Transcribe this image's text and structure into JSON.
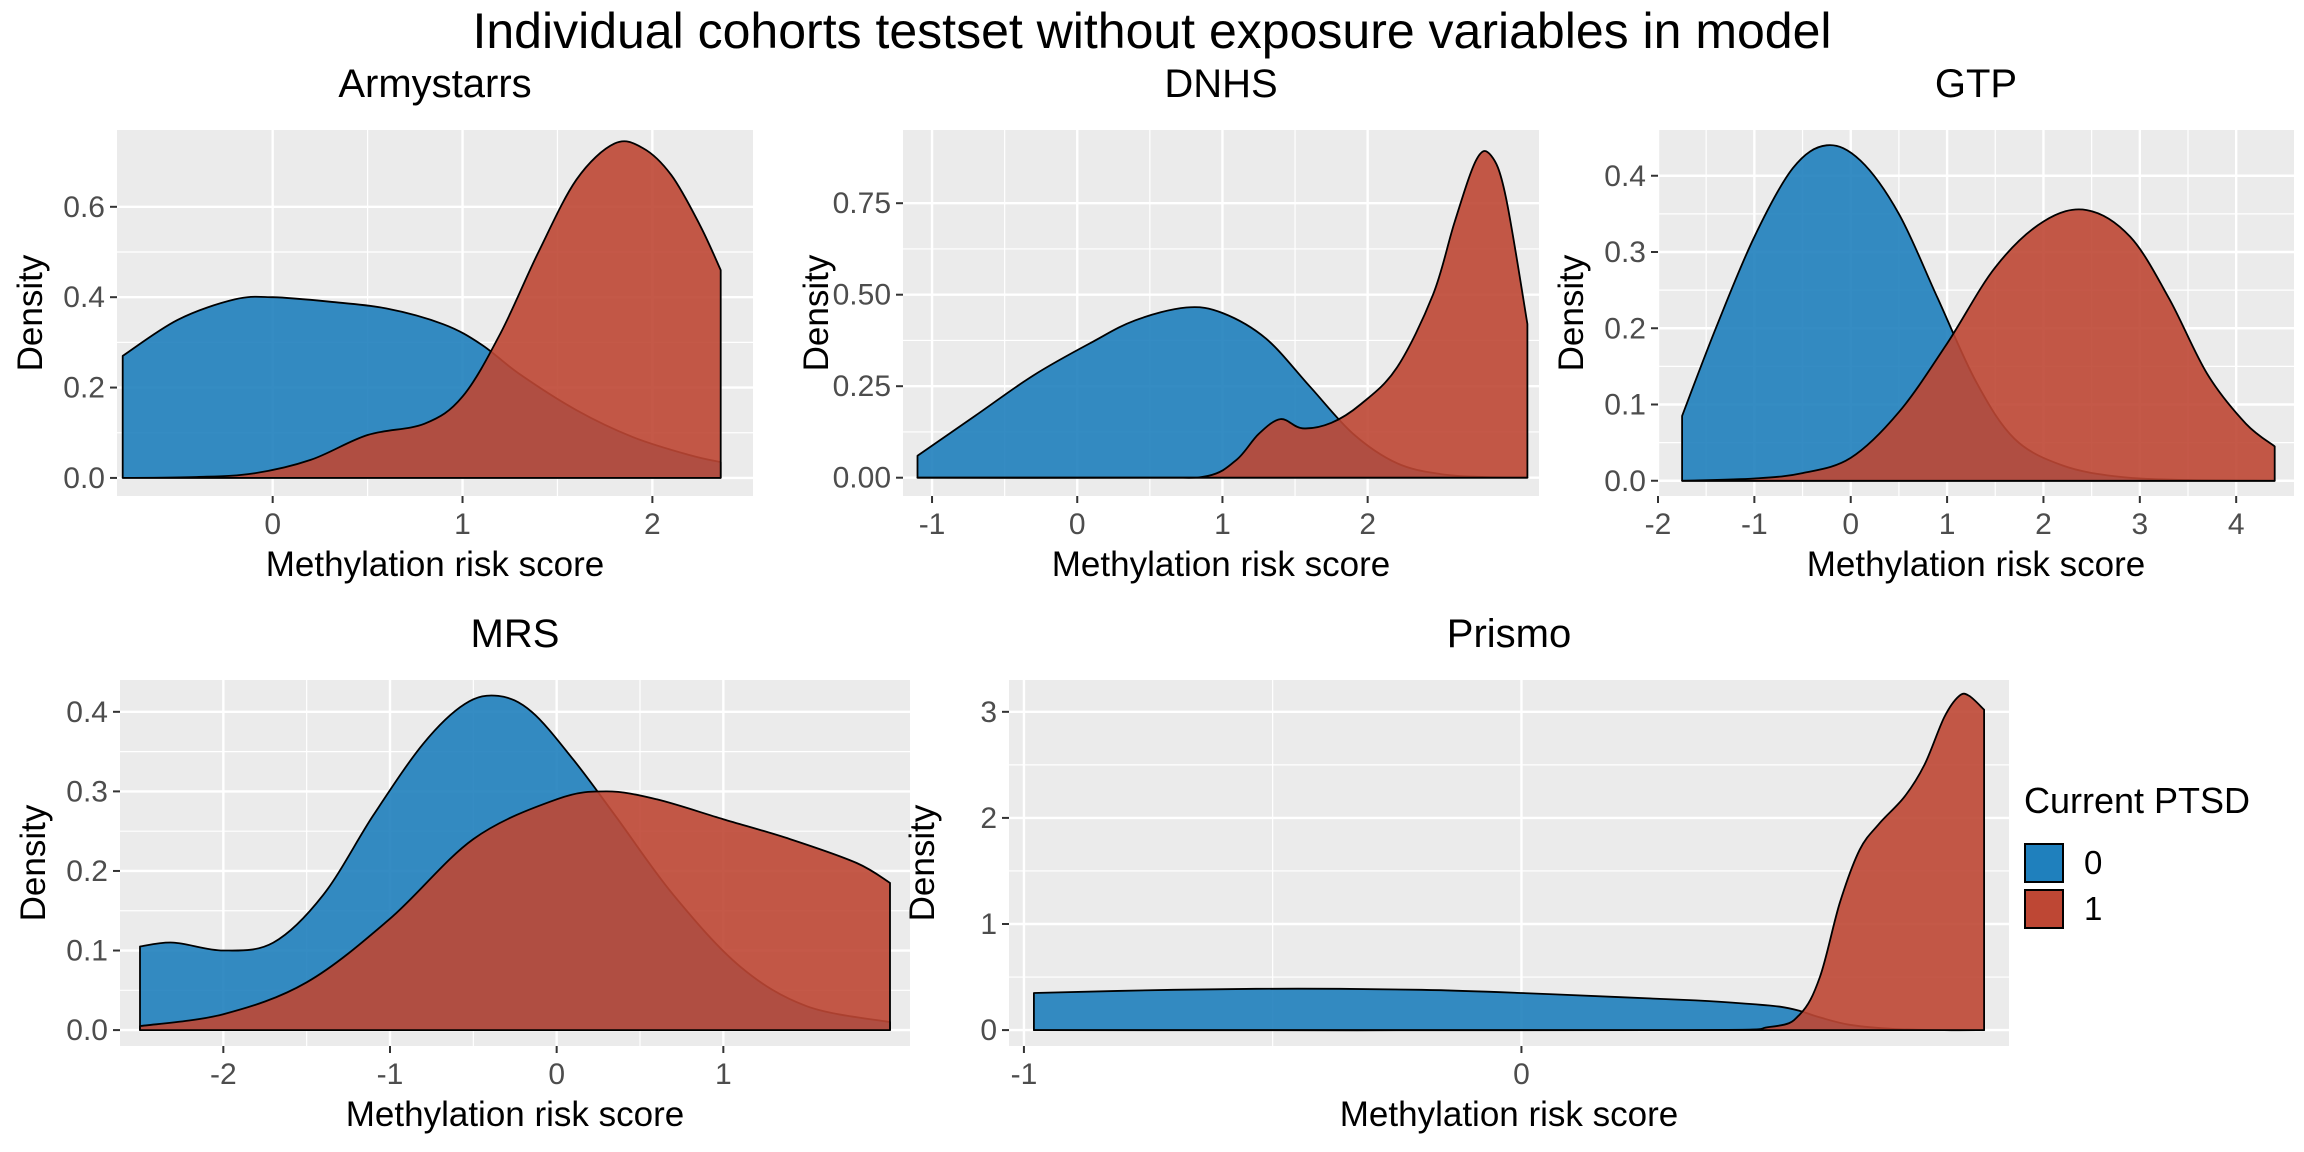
{
  "title": "Individual cohorts testset without exposure variables in model",
  "legend": {
    "title": "Current PTSD",
    "items": [
      {
        "label": "0",
        "color": "#1F80BD"
      },
      {
        "label": "1",
        "color": "#BE4734"
      }
    ]
  },
  "colors": {
    "panel_bg": "#EBEBEB",
    "grid": "#FFFFFF",
    "overlap": "#9C4A43",
    "outline": "#000000"
  },
  "chart_data": [
    {
      "type": "area",
      "title": "Armystarrs",
      "xlabel": "Methylation risk score",
      "ylabel": "Density",
      "xlim": [
        -0.82,
        2.53
      ],
      "ylim": [
        -0.04,
        0.77
      ],
      "xticks": [
        0,
        1,
        2
      ],
      "xtick_labels": [
        "0",
        "1",
        "2"
      ],
      "yticks": [
        0,
        0.2,
        0.4,
        0.6
      ],
      "ytick_labels": [
        "0.0",
        "0.2",
        "0.4",
        "0.6"
      ],
      "series": [
        {
          "name": "0",
          "x": [
            -0.79,
            -0.5,
            -0.2,
            0,
            0.3,
            0.6,
            0.9,
            1.1,
            1.3,
            1.6,
            1.9,
            2.2,
            2.36
          ],
          "y": [
            0.27,
            0.35,
            0.395,
            0.4,
            0.39,
            0.375,
            0.34,
            0.295,
            0.23,
            0.15,
            0.09,
            0.05,
            0.035
          ]
        },
        {
          "name": "1",
          "x": [
            -0.79,
            -0.4,
            -0.1,
            0.2,
            0.5,
            0.8,
            1.0,
            1.2,
            1.4,
            1.6,
            1.8,
            1.95,
            2.1,
            2.25,
            2.36
          ],
          "y": [
            0.0,
            0.002,
            0.01,
            0.04,
            0.095,
            0.12,
            0.18,
            0.32,
            0.5,
            0.66,
            0.74,
            0.73,
            0.67,
            0.56,
            0.46
          ]
        }
      ]
    },
    {
      "type": "area",
      "title": "DNHS",
      "xlabel": "Methylation risk score",
      "ylabel": "Density",
      "xlim": [
        -1.2,
        3.18
      ],
      "ylim": [
        -0.05,
        0.95
      ],
      "xticks": [
        -1,
        0,
        1,
        2
      ],
      "xtick_labels": [
        "-1",
        "0",
        "1",
        "2"
      ],
      "yticks": [
        0,
        0.25,
        0.5,
        0.75
      ],
      "ytick_labels": [
        "0.00",
        "0.25",
        "0.50",
        "0.75"
      ],
      "series": [
        {
          "name": "0",
          "x": [
            -1.1,
            -0.7,
            -0.3,
            0.1,
            0.4,
            0.75,
            1.0,
            1.3,
            1.6,
            1.9,
            2.2,
            2.5,
            2.8,
            3.1
          ],
          "y": [
            0.06,
            0.17,
            0.28,
            0.37,
            0.43,
            0.465,
            0.45,
            0.38,
            0.25,
            0.12,
            0.04,
            0.01,
            0.002,
            0.0
          ]
        },
        {
          "name": "1",
          "x": [
            -1.1,
            0.5,
            0.9,
            1.1,
            1.25,
            1.4,
            1.55,
            1.75,
            1.95,
            2.2,
            2.45,
            2.6,
            2.75,
            2.85,
            2.95,
            3.1
          ],
          "y": [
            0.0,
            0.0,
            0.005,
            0.05,
            0.12,
            0.16,
            0.135,
            0.15,
            0.2,
            0.3,
            0.5,
            0.7,
            0.87,
            0.88,
            0.77,
            0.42
          ]
        }
      ]
    },
    {
      "type": "area",
      "title": "GTP",
      "xlabel": "Methylation risk score",
      "ylabel": "Density",
      "xlim": [
        -2.0,
        4.6
      ],
      "ylim": [
        -0.02,
        0.46
      ],
      "xticks": [
        -2,
        -1,
        0,
        1,
        2,
        3,
        4
      ],
      "xtick_labels": [
        "-2",
        "-1",
        "0",
        "1",
        "2",
        "3",
        "4"
      ],
      "yticks": [
        0,
        0.1,
        0.2,
        0.3,
        0.4
      ],
      "ytick_labels": [
        "0.0",
        "0.1",
        "0.2",
        "0.3",
        "0.4"
      ],
      "series": [
        {
          "name": "0",
          "x": [
            -1.75,
            -1.4,
            -1.0,
            -0.6,
            -0.25,
            0.1,
            0.5,
            0.9,
            1.3,
            1.7,
            2.2,
            2.8,
            3.5,
            4.4
          ],
          "y": [
            0.085,
            0.2,
            0.32,
            0.41,
            0.44,
            0.42,
            0.35,
            0.24,
            0.13,
            0.055,
            0.02,
            0.005,
            0.001,
            0.0
          ]
        },
        {
          "name": "1",
          "x": [
            -1.75,
            -1.0,
            -0.5,
            0,
            0.5,
            1.0,
            1.5,
            2.0,
            2.45,
            2.9,
            3.3,
            3.7,
            4.1,
            4.4
          ],
          "y": [
            0.0,
            0.003,
            0.01,
            0.03,
            0.09,
            0.18,
            0.28,
            0.34,
            0.355,
            0.32,
            0.24,
            0.14,
            0.075,
            0.045
          ]
        }
      ]
    },
    {
      "type": "area",
      "title": "MRS",
      "xlabel": "Methylation risk score",
      "ylabel": "Density",
      "xlim": [
        -2.62,
        2.12
      ],
      "ylim": [
        -0.02,
        0.44
      ],
      "xticks": [
        -2,
        -1,
        0,
        1
      ],
      "xtick_labels": [
        "-2",
        "-1",
        "0",
        "1"
      ],
      "yticks": [
        0,
        0.1,
        0.2,
        0.3,
        0.4
      ],
      "ytick_labels": [
        "0.0",
        "0.1",
        "0.2",
        "0.3",
        "0.4"
      ],
      "series": [
        {
          "name": "0",
          "x": [
            -2.5,
            -2.3,
            -2.0,
            -1.7,
            -1.4,
            -1.1,
            -0.8,
            -0.55,
            -0.35,
            -0.15,
            0.1,
            0.35,
            0.7,
            1.1,
            1.5,
            2.0
          ],
          "y": [
            0.105,
            0.11,
            0.1,
            0.11,
            0.17,
            0.27,
            0.36,
            0.41,
            0.42,
            0.4,
            0.34,
            0.27,
            0.17,
            0.08,
            0.03,
            0.01
          ]
        },
        {
          "name": "1",
          "x": [
            -2.5,
            -2.0,
            -1.5,
            -1.0,
            -0.5,
            0,
            0.3,
            0.6,
            1.0,
            1.4,
            1.8,
            2.0
          ],
          "y": [
            0.005,
            0.02,
            0.06,
            0.14,
            0.24,
            0.29,
            0.3,
            0.29,
            0.265,
            0.24,
            0.21,
            0.185
          ]
        }
      ]
    },
    {
      "type": "area",
      "title": "Prismo",
      "xlabel": "Methylation risk score",
      "ylabel": "Density",
      "xlim": [
        -1.03,
        0.98
      ],
      "ylim": [
        -0.15,
        3.3
      ],
      "xticks": [
        -1,
        0
      ],
      "xtick_labels": [
        "-1",
        "0"
      ],
      "yticks": [
        0,
        1,
        2,
        3
      ],
      "ytick_labels": [
        "0",
        "1",
        "2",
        "3"
      ],
      "series": [
        {
          "name": "0",
          "x": [
            -0.98,
            -0.7,
            -0.45,
            -0.2,
            0.0,
            0.2,
            0.35,
            0.45,
            0.52,
            0.56,
            0.6,
            0.66,
            0.75,
            0.85,
            0.93
          ],
          "y": [
            0.35,
            0.38,
            0.39,
            0.38,
            0.35,
            0.31,
            0.28,
            0.25,
            0.22,
            0.18,
            0.12,
            0.05,
            0.01,
            0.0,
            0.0
          ]
        },
        {
          "name": "1",
          "x": [
            -0.98,
            0.3,
            0.5,
            0.56,
            0.6,
            0.64,
            0.68,
            0.72,
            0.77,
            0.81,
            0.85,
            0.88,
            0.9,
            0.93
          ],
          "y": [
            0.0,
            0.0,
            0.03,
            0.15,
            0.5,
            1.2,
            1.7,
            1.95,
            2.2,
            2.5,
            2.95,
            3.15,
            3.15,
            3.02
          ]
        }
      ]
    }
  ]
}
